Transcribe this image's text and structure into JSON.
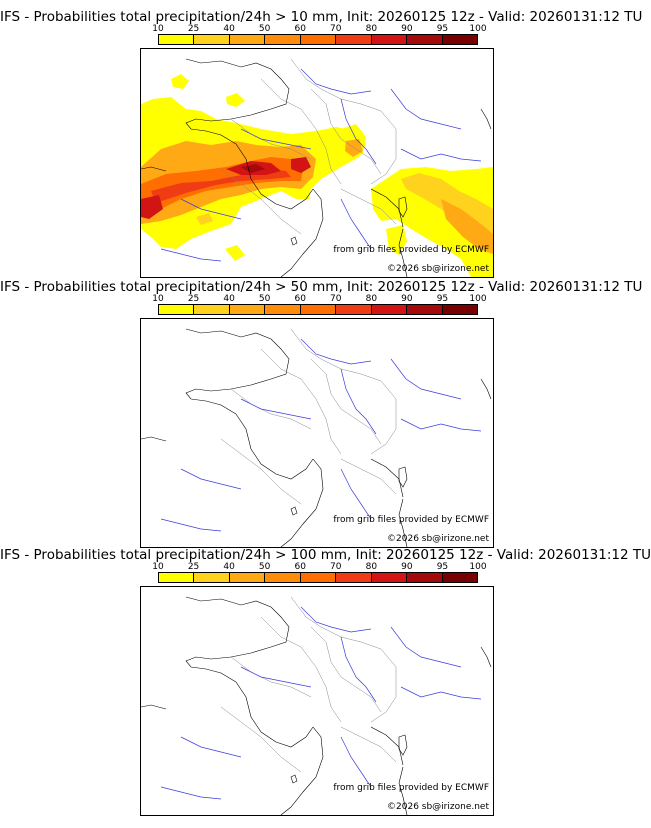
{
  "panels": [
    {
      "title": "IFS - Probabilities total precipitation/24h > 10 mm, Init: 20260125 12z - Valid: 20260131:12 TU",
      "has_precip": true
    },
    {
      "title": "IFS - Probabilities total precipitation/24h > 50 mm, Init: 20260125 12z - Valid: 20260131:12 TU",
      "has_precip": false
    },
    {
      "title": "IFS - Probabilities total precipitation/24h > 100 mm, Init: 20260125 12z - Valid: 20260131:12 TU",
      "has_precip": false
    }
  ],
  "colorbar": {
    "ticks": [
      "10",
      "25",
      "40",
      "50",
      "60",
      "70",
      "80",
      "90",
      "95",
      "100"
    ],
    "colors": [
      "#ffff00",
      "#ffd21e",
      "#ffaa14",
      "#ff8c0a",
      "#ff6e00",
      "#f03c14",
      "#d21414",
      "#a50a0a",
      "#780000"
    ]
  },
  "credits": {
    "source": "from grib files provided by ECMWF",
    "copyright": "©2026 sb@irizone.net"
  }
}
